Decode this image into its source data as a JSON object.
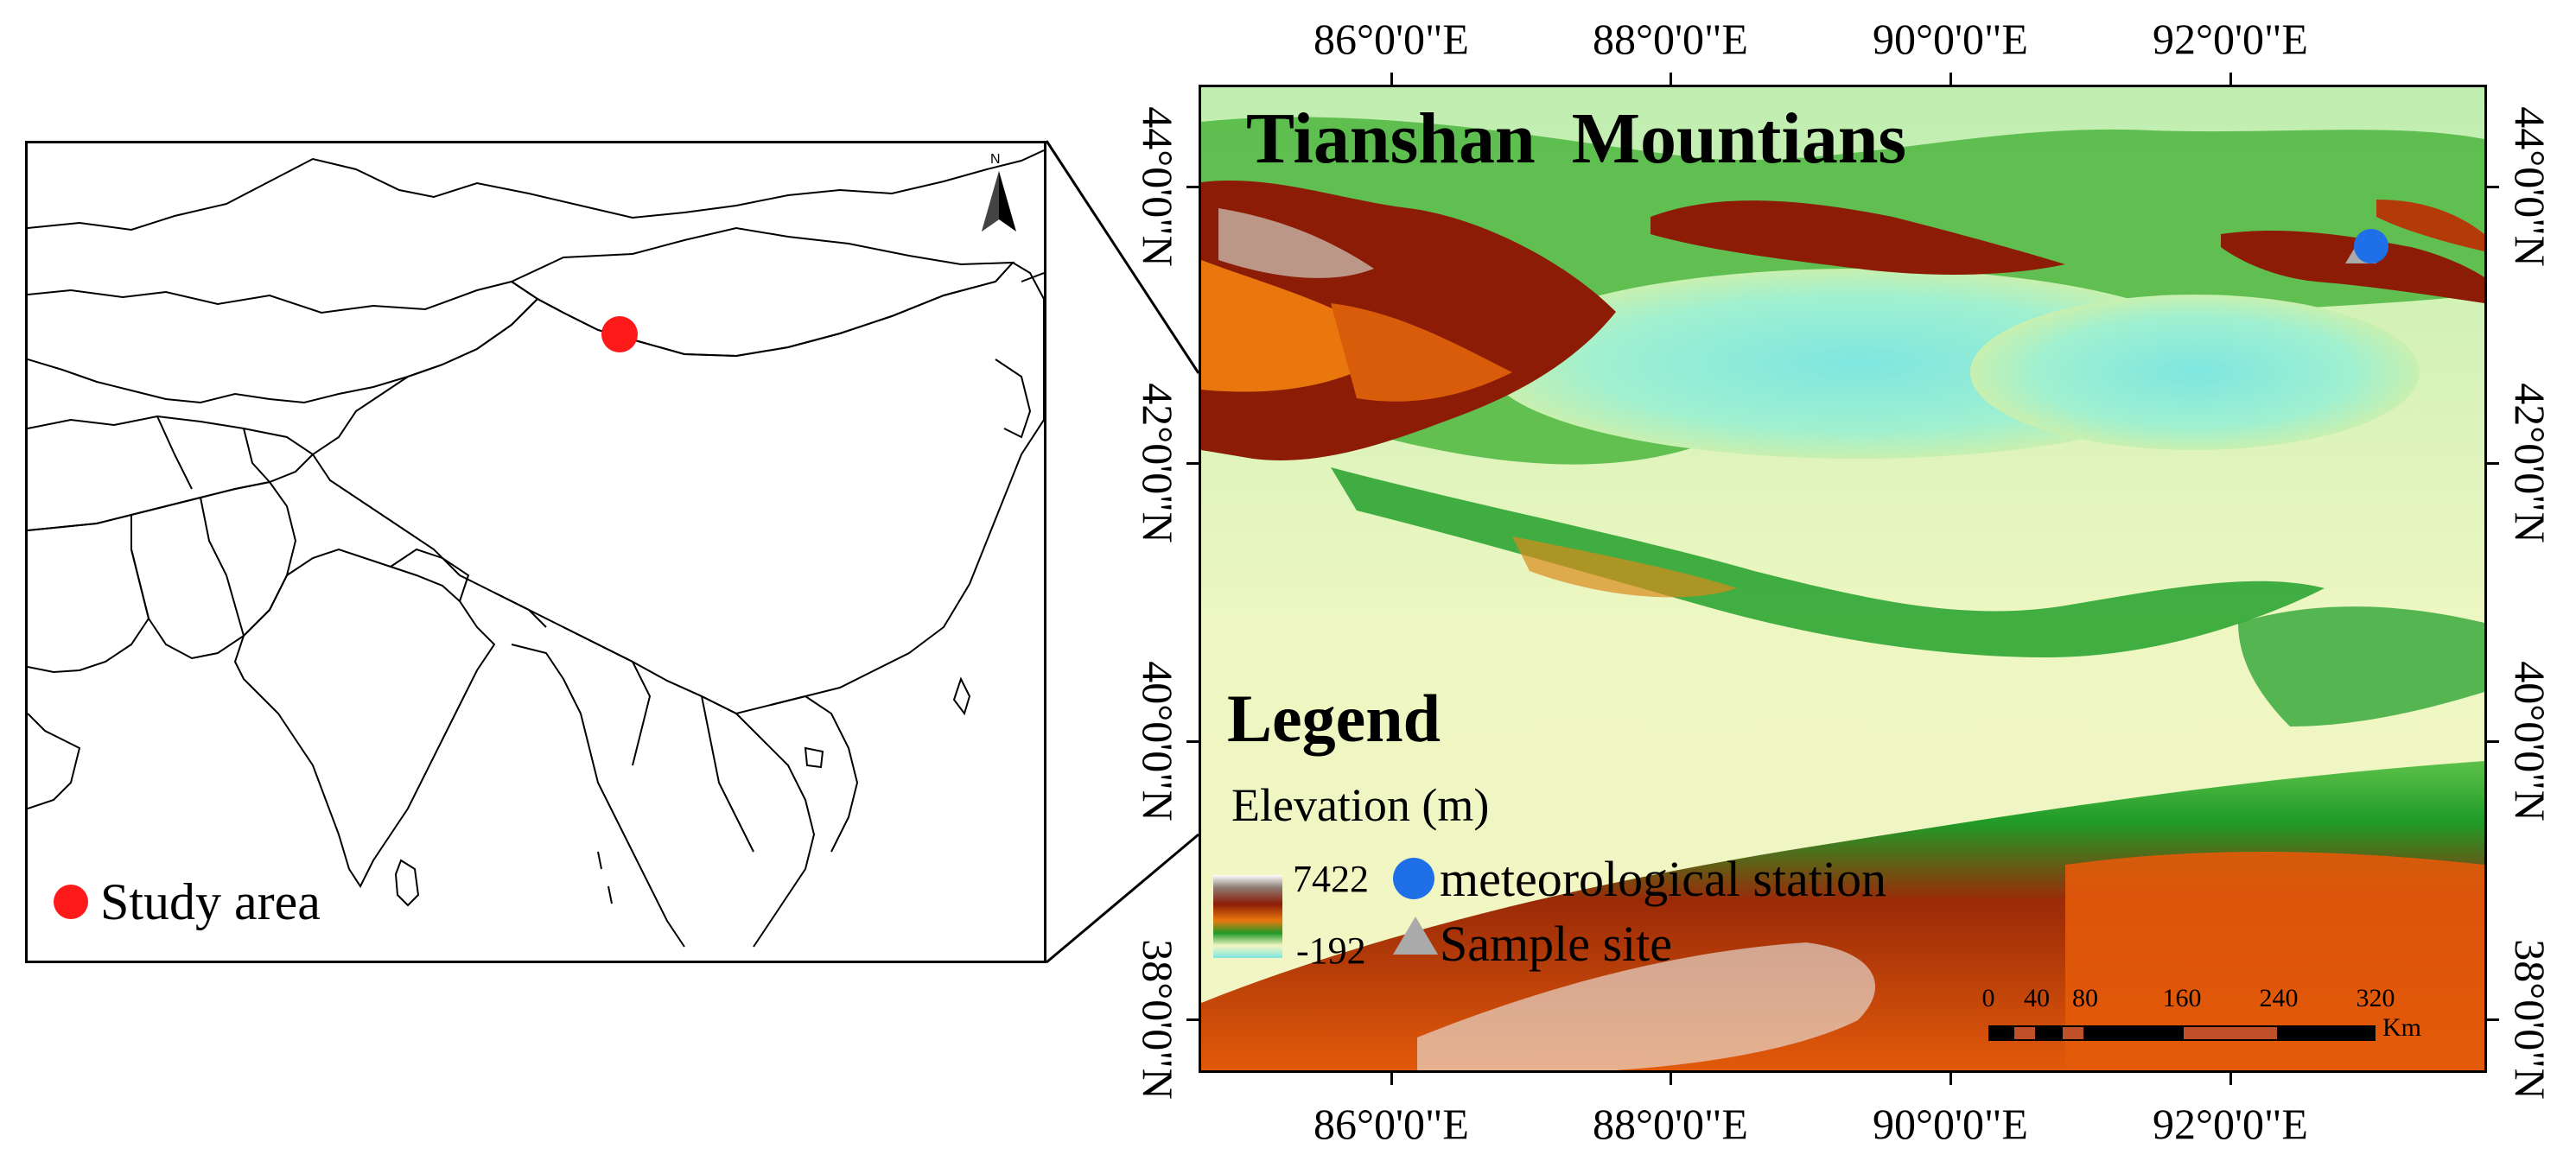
{
  "inset_map": {
    "north_label": "N",
    "study_area_label": "Study area",
    "study_area_color": "#ff1a1a"
  },
  "main_map": {
    "title": "Tianshan  Mountians",
    "legend": {
      "title": "Legend",
      "elevation_title": "Elevation (m)",
      "elevation_max": "7422",
      "elevation_min": "-192",
      "station_label": "meteorological station",
      "station_color": "#1f6fe8",
      "sample_label": "Sample site",
      "sample_color": "#aaaaaa"
    },
    "scale_bar": {
      "labels": [
        "0",
        "40",
        "80",
        "160",
        "240",
        "320"
      ],
      "unit": "Km"
    },
    "lon_labels": [
      "86°0'0\"E",
      "88°0'0\"E",
      "90°0'0\"E",
      "92°0'0\"E"
    ],
    "lat_labels": [
      "44°0'0\"N",
      "42°0'0\"N",
      "40°0'0\"N",
      "38°0'0\"N"
    ]
  }
}
